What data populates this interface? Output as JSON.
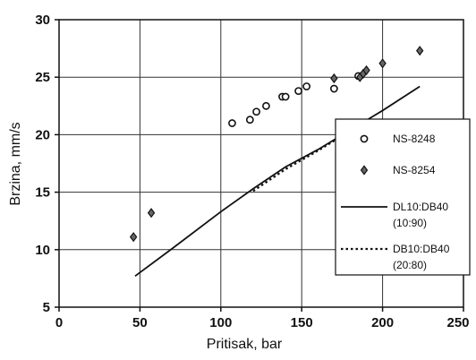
{
  "chart_data": {
    "type": "scatter",
    "title": "",
    "xlabel": "Pritisak, bar",
    "ylabel": "Brzina, mm/s",
    "xlim": [
      0,
      250
    ],
    "ylim": [
      5,
      30
    ],
    "xticks": [
      "0",
      "50",
      "100",
      "150",
      "200",
      "250"
    ],
    "yticks": [
      "5",
      "10",
      "15",
      "20",
      "25",
      "30"
    ],
    "grid": true,
    "legend_position": "right",
    "series": [
      {
        "name": "NS-8248",
        "kind": "scatter",
        "marker": "open-circle",
        "points": [
          [
            107,
            21.0
          ],
          [
            118,
            21.3
          ],
          [
            122,
            22.0
          ],
          [
            128,
            22.5
          ],
          [
            138,
            23.3
          ],
          [
            140,
            23.3
          ],
          [
            148,
            23.8
          ],
          [
            153,
            24.2
          ],
          [
            170,
            24.0
          ],
          [
            185,
            25.1
          ]
        ]
      },
      {
        "name": "NS-8254",
        "kind": "scatter",
        "marker": "filled-diamond",
        "points": [
          [
            46,
            11.1
          ],
          [
            57,
            13.2
          ],
          [
            170,
            24.9
          ],
          [
            186,
            25.0
          ],
          [
            188,
            25.3
          ],
          [
            190,
            25.6
          ],
          [
            200,
            26.2
          ],
          [
            223,
            27.3
          ]
        ]
      },
      {
        "name": "DL10:DB40 (10:90)",
        "legend_lines": [
          "DL10:DB40",
          "(10:90)"
        ],
        "kind": "line",
        "style": "solid",
        "points": [
          [
            47,
            7.7
          ],
          [
            70,
            10.1
          ],
          [
            100,
            13.3
          ],
          [
            120,
            15.3
          ],
          [
            140,
            17.2
          ],
          [
            160,
            18.7
          ],
          [
            180,
            20.4
          ],
          [
            200,
            22.1
          ],
          [
            223,
            24.2
          ]
        ]
      },
      {
        "name": "DB10:DB40 (20:80)",
        "legend_lines": [
          "DB10:DB40",
          "(20:80)"
        ],
        "kind": "line",
        "style": "dotted",
        "points": [
          [
            120,
            15.1
          ],
          [
            140,
            17.0
          ],
          [
            160,
            18.6
          ],
          [
            175,
            19.9
          ]
        ]
      }
    ]
  },
  "colors": {
    "series": "#111111",
    "grid": "#333333",
    "background": "#ffffff"
  }
}
